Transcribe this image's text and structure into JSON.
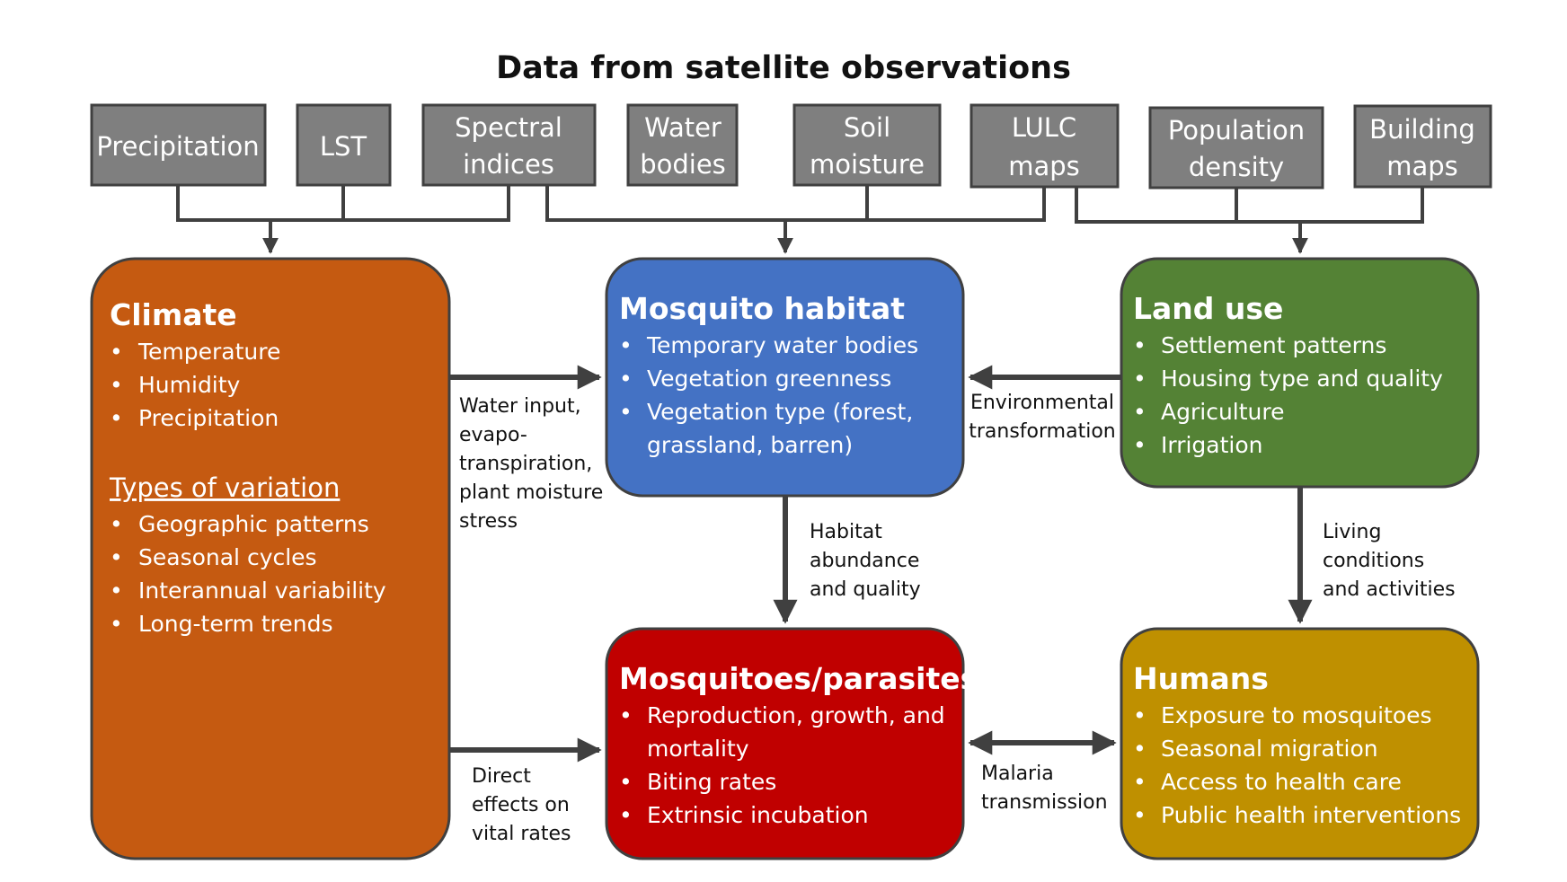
{
  "title": "Data from satellite observations",
  "sources": {
    "precipitation": [
      "Precipitation"
    ],
    "lst": [
      "LST"
    ],
    "spectral": [
      "Spectral",
      "indices"
    ],
    "water": [
      "Water",
      "bodies"
    ],
    "soil": [
      "Soil",
      "moisture"
    ],
    "lulc": [
      "LULC",
      "maps"
    ],
    "population": [
      "Population",
      "density"
    ],
    "building": [
      "Building",
      "maps"
    ]
  },
  "boxes": {
    "climate": {
      "title": "Climate",
      "items": [
        "Temperature",
        "Humidity",
        "Precipitation"
      ],
      "subheading": "Types of variation",
      "subitems": [
        "Geographic patterns",
        "Seasonal cycles",
        "Interannual variability",
        "Long-term trends"
      ],
      "color": "#c55a11"
    },
    "habitat": {
      "title": "Mosquito habitat",
      "items": [
        "Temporary water bodies",
        "Vegetation greenness",
        "Vegetation type (forest,",
        "grassland, barren)"
      ],
      "color": "#4472c4"
    },
    "landuse": {
      "title": "Land use",
      "items": [
        "Settlement patterns",
        "Housing type and quality",
        "Agriculture",
        "Irrigation"
      ],
      "color": "#548235"
    },
    "mosquitoes": {
      "title": "Mosquitoes/parasites",
      "items": [
        "Reproduction, growth, and",
        "mortality",
        "Biting rates",
        "Extrinsic incubation"
      ],
      "color": "#c00000"
    },
    "humans": {
      "title": "Humans",
      "items": [
        "Exposure to mosquitoes",
        "Seasonal migration",
        "Access to health care",
        "Public health interventions"
      ],
      "color": "#bf9000"
    }
  },
  "edges": {
    "water_input": [
      "Water input,",
      "evapo-",
      "transpiration,",
      "plant moisture",
      "stress"
    ],
    "environmental": [
      "Environmental",
      "transformation"
    ],
    "habitat_abundance": [
      "Habitat",
      "abundance",
      "and quality"
    ],
    "living_conditions": [
      "Living",
      "conditions",
      "and activities"
    ],
    "direct_effects": [
      "Direct",
      "effects on",
      "vital rates"
    ],
    "malaria": [
      "Malaria",
      "transmission"
    ]
  },
  "colors": {
    "source_fill": "#7f7f7f",
    "border": "#404040",
    "arrow": "#404040"
  }
}
